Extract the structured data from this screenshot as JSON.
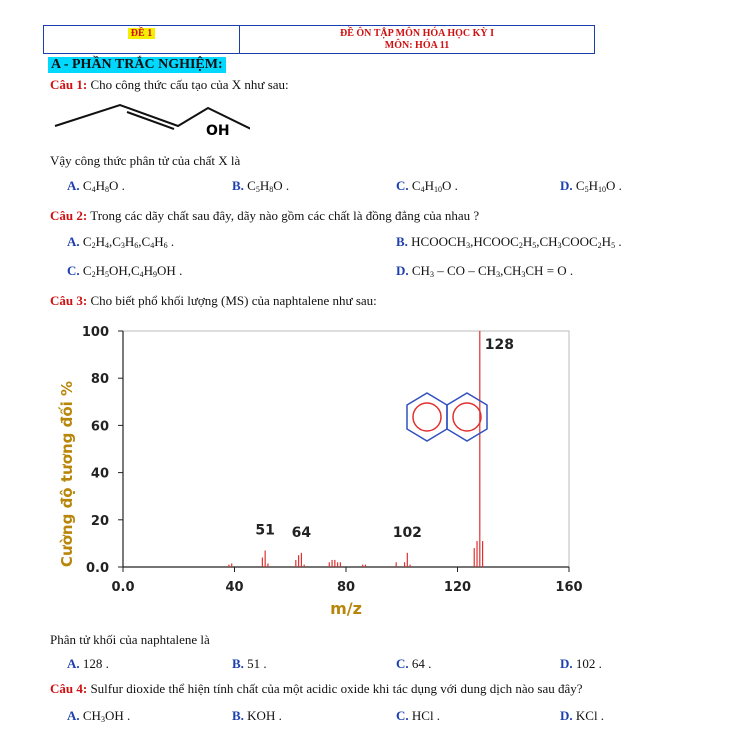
{
  "header": {
    "code": "ĐỀ 1",
    "title": "ĐỀ ÔN TẬP MÔN HÓA HỌC KỲ I",
    "subject": "MÔN: HÓA 11"
  },
  "section_title": "A - PHẦN TRẮC NGHIỆM:",
  "q1": {
    "label": "Câu 1:",
    "text": "Cho công thức cấu tạo của X như sau:",
    "structure_label": "OH",
    "followup": "Vậy công thức phân tử của chất X là",
    "options": [
      {
        "label": "A.",
        "parts": [
          [
            "C",
            ""
          ],
          [
            "4",
            "sub"
          ],
          [
            "H",
            ""
          ],
          [
            "8",
            "sub"
          ],
          [
            "O .",
            ""
          ]
        ]
      },
      {
        "label": "B.",
        "parts": [
          [
            "C",
            ""
          ],
          [
            "5",
            "sub"
          ],
          [
            "H",
            ""
          ],
          [
            "8",
            "sub"
          ],
          [
            "O .",
            ""
          ]
        ]
      },
      {
        "label": "C.",
        "parts": [
          [
            "C",
            ""
          ],
          [
            "4",
            "sub"
          ],
          [
            "H",
            ""
          ],
          [
            "10",
            "sub"
          ],
          [
            "O .",
            ""
          ]
        ]
      },
      {
        "label": "D.",
        "parts": [
          [
            "C",
            ""
          ],
          [
            "5",
            "sub"
          ],
          [
            "H",
            ""
          ],
          [
            "10",
            "sub"
          ],
          [
            "O .",
            ""
          ]
        ]
      }
    ]
  },
  "q2": {
    "label": "Câu 2:",
    "text": "Trong các dãy chất sau đây, dãy nào gồm các chất là đồng đẳng của nhau ?",
    "options": [
      {
        "label": "A.",
        "parts": [
          [
            "C",
            ""
          ],
          [
            "2",
            "sub"
          ],
          [
            "H",
            ""
          ],
          [
            "4",
            "sub"
          ],
          [
            ",C",
            ""
          ],
          [
            "3",
            "sub"
          ],
          [
            "H",
            ""
          ],
          [
            "6",
            "sub"
          ],
          [
            ",C",
            ""
          ],
          [
            "4",
            "sub"
          ],
          [
            "H",
            ""
          ],
          [
            "6",
            "sub"
          ],
          [
            " .",
            ""
          ]
        ]
      },
      {
        "label": "B.",
        "parts": [
          [
            "HCOOCH",
            ""
          ],
          [
            "3",
            "sub"
          ],
          [
            ",HCOOC",
            ""
          ],
          [
            "2",
            "sub"
          ],
          [
            "H",
            ""
          ],
          [
            "5",
            "sub"
          ],
          [
            ",CH",
            ""
          ],
          [
            "3",
            "sub"
          ],
          [
            "COOC",
            ""
          ],
          [
            "2",
            "sub"
          ],
          [
            "H",
            ""
          ],
          [
            "5",
            "sub"
          ],
          [
            " .",
            ""
          ]
        ]
      },
      {
        "label": "C.",
        "parts": [
          [
            "C",
            ""
          ],
          [
            "2",
            "sub"
          ],
          [
            "H",
            ""
          ],
          [
            "5",
            "sub"
          ],
          [
            "OH,C",
            ""
          ],
          [
            "4",
            "sub"
          ],
          [
            "H",
            ""
          ],
          [
            "9",
            "sub"
          ],
          [
            "OH .",
            ""
          ]
        ]
      },
      {
        "label": "D.",
        "parts": [
          [
            "CH",
            ""
          ],
          [
            "3",
            "sub"
          ],
          [
            " – CO – CH",
            ""
          ],
          [
            "3",
            "sub"
          ],
          [
            ",CH",
            ""
          ],
          [
            "3",
            "sub"
          ],
          [
            "CH = O .",
            ""
          ]
        ]
      }
    ]
  },
  "q3": {
    "label": "Câu 3:",
    "text": "Cho biết phổ khối lượng (MS) của naphtalene như sau:",
    "followup": "Phân tử khối của naphtalene là",
    "options": [
      {
        "label": "A.",
        "parts": [
          [
            "128 .",
            ""
          ]
        ]
      },
      {
        "label": "B.",
        "parts": [
          [
            "51 .",
            ""
          ]
        ]
      },
      {
        "label": "C.",
        "parts": [
          [
            "64 .",
            ""
          ]
        ]
      },
      {
        "label": "D.",
        "parts": [
          [
            "102 .",
            ""
          ]
        ]
      }
    ]
  },
  "q4": {
    "label": "Câu 4:",
    "text": "Sulfur dioxide thể hiện tính chất của một acidic oxide khi tác dụng với dung dịch nào sau đây?",
    "options": [
      {
        "label": "A.",
        "parts": [
          [
            "CH",
            ""
          ],
          [
            "3",
            "sub"
          ],
          [
            "OH .",
            ""
          ]
        ]
      },
      {
        "label": "B.",
        "parts": [
          [
            "KOH .",
            ""
          ]
        ]
      },
      {
        "label": "C.",
        "parts": [
          [
            "HCl .",
            ""
          ]
        ]
      },
      {
        "label": "D.",
        "parts": [
          [
            "KCl .",
            ""
          ]
        ]
      }
    ]
  },
  "chart_data": {
    "type": "bar",
    "xlabel": "m/z",
    "ylabel": "Cường độ tương đối %",
    "xlim": [
      0,
      160
    ],
    "ylim": [
      0,
      100
    ],
    "xticks": [
      "0.0",
      "40",
      "80",
      "120",
      "160"
    ],
    "yticks": [
      "0.0",
      "20",
      "40",
      "60",
      "80",
      "100"
    ],
    "bar_color": "#e03030",
    "peak_labels": [
      {
        "x": 51,
        "text": "51"
      },
      {
        "x": 64,
        "text": "64"
      },
      {
        "x": 102,
        "text": "102"
      },
      {
        "x": 128,
        "text": "128"
      }
    ],
    "peaks": [
      {
        "x": 38,
        "y": 1
      },
      {
        "x": 39,
        "y": 1.5
      },
      {
        "x": 50,
        "y": 4
      },
      {
        "x": 51,
        "y": 7
      },
      {
        "x": 52,
        "y": 1.5
      },
      {
        "x": 62,
        "y": 3
      },
      {
        "x": 63,
        "y": 5
      },
      {
        "x": 64,
        "y": 6
      },
      {
        "x": 65,
        "y": 1
      },
      {
        "x": 74,
        "y": 2
      },
      {
        "x": 75,
        "y": 3
      },
      {
        "x": 76,
        "y": 3
      },
      {
        "x": 77,
        "y": 2
      },
      {
        "x": 78,
        "y": 2
      },
      {
        "x": 86,
        "y": 1
      },
      {
        "x": 87,
        "y": 1
      },
      {
        "x": 98,
        "y": 2
      },
      {
        "x": 101,
        "y": 2
      },
      {
        "x": 102,
        "y": 6
      },
      {
        "x": 103,
        "y": 1
      },
      {
        "x": 126,
        "y": 8
      },
      {
        "x": 127,
        "y": 11
      },
      {
        "x": 128,
        "y": 100
      },
      {
        "x": 129,
        "y": 11
      }
    ]
  }
}
